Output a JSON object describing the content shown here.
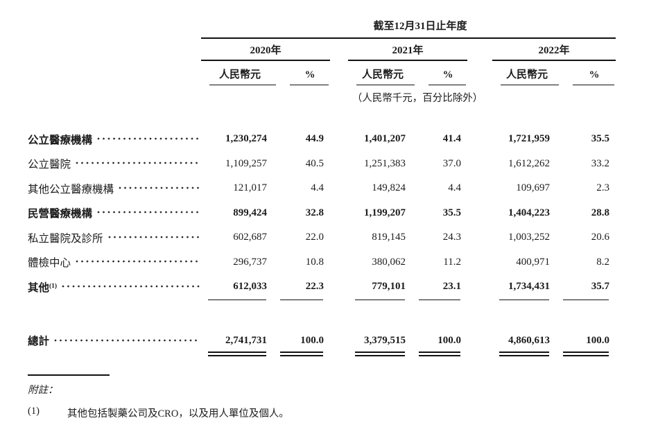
{
  "table": {
    "title": "截至12月31日止年度",
    "years": [
      "2020年",
      "2021年",
      "2022年"
    ],
    "col_headers": {
      "currency": "人民幣元",
      "percent": "%"
    },
    "unit_note": "（人民幣千元，百分比除外）",
    "rows": [
      {
        "label": "公立醫療機構",
        "bold": true,
        "v2020": "1,230,274",
        "p2020": "44.9",
        "v2021": "1,401,207",
        "p2021": "41.4",
        "v2022": "1,721,959",
        "p2022": "35.5"
      },
      {
        "label": "公立醫院",
        "bold": false,
        "v2020": "1,109,257",
        "p2020": "40.5",
        "v2021": "1,251,383",
        "p2021": "37.0",
        "v2022": "1,612,262",
        "p2022": "33.2"
      },
      {
        "label": "其他公立醫療機構",
        "bold": false,
        "v2020": "121,017",
        "p2020": "4.4",
        "v2021": "149,824",
        "p2021": "4.4",
        "v2022": "109,697",
        "p2022": "2.3"
      },
      {
        "label": "民營醫療機構",
        "bold": true,
        "v2020": "899,424",
        "p2020": "32.8",
        "v2021": "1,199,207",
        "p2021": "35.5",
        "v2022": "1,404,223",
        "p2022": "28.8"
      },
      {
        "label": "私立醫院及診所",
        "bold": false,
        "v2020": "602,687",
        "p2020": "22.0",
        "v2021": "819,145",
        "p2021": "24.3",
        "v2022": "1,003,252",
        "p2022": "20.6"
      },
      {
        "label": "體檢中心",
        "bold": false,
        "v2020": "296,737",
        "p2020": "10.8",
        "v2021": "380,062",
        "p2021": "11.2",
        "v2022": "400,971",
        "p2022": "8.2"
      },
      {
        "label": "其他",
        "label_sup": "(1)",
        "bold": true,
        "v2020": "612,033",
        "p2020": "22.3",
        "v2021": "779,101",
        "p2021": "23.1",
        "v2022": "1,734,431",
        "p2022": "35.7"
      }
    ],
    "total": {
      "label": "總計",
      "v2020": "2,741,731",
      "p2020": "100.0",
      "v2021": "3,379,515",
      "p2021": "100.0",
      "v2022": "4,860,613",
      "p2022": "100.0"
    }
  },
  "footnotes": {
    "heading": "附註：",
    "items": [
      {
        "num": "(1)",
        "text": "其他包括製藥公司及CRO，以及用人單位及個人。"
      }
    ]
  }
}
